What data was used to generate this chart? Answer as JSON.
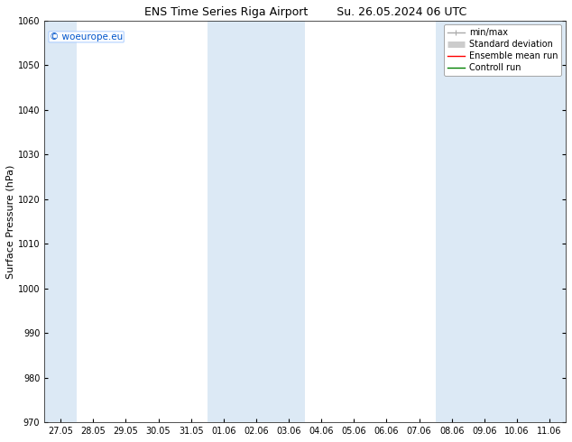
{
  "title_left": "ENS Time Series Riga Airport",
  "title_right": "Su. 26.05.2024 06 UTC",
  "ylabel": "Surface Pressure (hPa)",
  "ylim": [
    970,
    1060
  ],
  "yticks": [
    970,
    980,
    990,
    1000,
    1010,
    1020,
    1030,
    1040,
    1050,
    1060
  ],
  "xtick_labels": [
    "27.05",
    "28.05",
    "29.05",
    "30.05",
    "31.05",
    "01.06",
    "02.06",
    "03.06",
    "04.06",
    "05.06",
    "06.06",
    "07.06",
    "08.06",
    "09.06",
    "10.06",
    "11.06"
  ],
  "shaded_color": "#dce9f5",
  "background_color": "#ffffff",
  "watermark": "© woeurope.eu",
  "watermark_color": "#0055cc",
  "legend_items": [
    {
      "label": "min/max",
      "color": "#aaaaaa",
      "lw": 1
    },
    {
      "label": "Standard deviation",
      "color": "#cccccc",
      "lw": 5
    },
    {
      "label": "Ensemble mean run",
      "color": "red",
      "lw": 1
    },
    {
      "label": "Controll run",
      "color": "green",
      "lw": 1
    }
  ],
  "title_fontsize": 9,
  "tick_fontsize": 7,
  "ylabel_fontsize": 8,
  "legend_fontsize": 7,
  "watermark_fontsize": 7.5
}
